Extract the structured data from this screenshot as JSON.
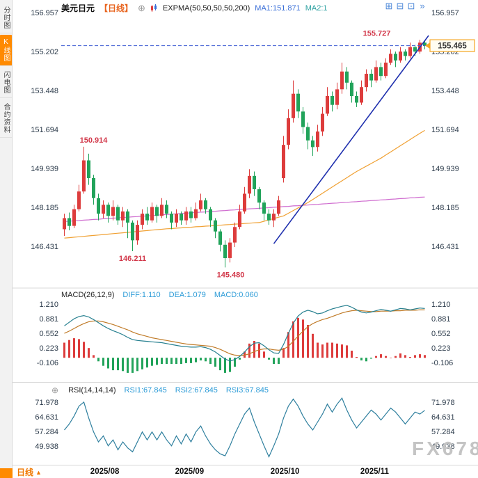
{
  "sidebar": {
    "items": [
      {
        "label": "分时图",
        "active": false
      },
      {
        "label": "K线图",
        "active": true
      },
      {
        "label": "闪电图",
        "active": false
      },
      {
        "label": "合约资料",
        "active": false
      }
    ]
  },
  "header": {
    "title": "美元日元",
    "period": "【日线】",
    "expand": "⊕",
    "indicator": "EXPMA(50,50,50,50,200)",
    "ma1": "MA1:151.871",
    "ma2": "MA2:1"
  },
  "toolbar": {
    "icons": [
      "⊞",
      "⊟",
      "⊡",
      "»"
    ]
  },
  "macd_header": {
    "name": "MACD(26,12,9)",
    "diff": "DIFF:1.110",
    "dea": "DEA:1.079",
    "macd": "MACD:0.060"
  },
  "rsi_header": {
    "icon": "⊕",
    "name": "RSI(14,14,14)",
    "rsi1": "RSI1:67.845",
    "rsi2": "RSI2:67.845",
    "rsi3": "RSI3:67.845"
  },
  "bottom_bar": {
    "period": "日线",
    "arrow": "▲"
  },
  "watermark": "FX678",
  "colors": {
    "up": "#dd3c3c",
    "down": "#21a35a",
    "trend": "#1e2fae",
    "ma_orange": "#f0a032",
    "ma_magenta": "#cf6ccf",
    "diff": "#257f8f",
    "dea": "#c07b28",
    "rsi": "#2e7f9e",
    "annotation": "#d2384a",
    "price_line": "#3c5bd2",
    "tag_border": "#f5a623",
    "axis_text": "#2b3a4a"
  },
  "chart_data": {
    "type": "candlestick",
    "title": "美元日元【日线】",
    "xticks": [
      {
        "label": "2025/08",
        "index": 8.3
      },
      {
        "label": "2025/09",
        "index": 25.7
      },
      {
        "label": "2025/10",
        "index": 45.3
      },
      {
        "label": "2025/11",
        "index": 63.7
      }
    ],
    "panels": {
      "main": {
        "ylim": [
          145.0,
          156.957
        ],
        "yticks": [
          "156.957",
          "155.202",
          "153.448",
          "151.694",
          "149.939",
          "148.185",
          "146.431"
        ],
        "current_price": 155.465,
        "current_price_label": "155.465",
        "annotations": [
          {
            "label": "150.914",
            "index": 4,
            "price": 150.914,
            "pos": "above",
            "dx": 14
          },
          {
            "label": "146.211",
            "index": 14,
            "price": 146.211,
            "pos": "below",
            "dx": 0
          },
          {
            "label": "145.480",
            "index": 33,
            "price": 145.48,
            "pos": "below",
            "dx": 8
          },
          {
            "label": "155.727",
            "index": 73,
            "price": 155.727,
            "pos": "above",
            "dx": -62
          }
        ],
        "trendline": {
          "i1": 43,
          "p1": 146.55,
          "i2": 75.3,
          "p2": 155.92
        },
        "ohlc": [
          [
            147.2,
            147.9,
            146.9,
            147.7
          ],
          [
            147.7,
            147.95,
            147.15,
            147.35
          ],
          [
            147.35,
            148.3,
            147.25,
            148.1
          ],
          [
            148.1,
            149.2,
            148.0,
            148.9
          ],
          [
            148.9,
            150.914,
            148.8,
            150.3
          ],
          [
            150.3,
            150.6,
            149.2,
            149.5
          ],
          [
            149.5,
            149.65,
            148.3,
            148.6
          ],
          [
            148.6,
            148.8,
            147.6,
            147.9
          ],
          [
            147.9,
            148.5,
            147.7,
            148.3
          ],
          [
            148.3,
            148.4,
            147.5,
            147.8
          ],
          [
            147.8,
            148.5,
            147.6,
            148.2
          ],
          [
            148.2,
            148.3,
            147.4,
            147.6
          ],
          [
            147.6,
            148.2,
            147.3,
            148.0
          ],
          [
            148.0,
            148.1,
            146.8,
            147.5
          ],
          [
            147.5,
            147.6,
            146.211,
            146.7
          ],
          [
            146.7,
            147.6,
            146.5,
            147.4
          ],
          [
            147.4,
            148.1,
            147.2,
            147.9
          ],
          [
            147.9,
            148.2,
            147.4,
            147.6
          ],
          [
            147.6,
            148.4,
            147.5,
            148.2
          ],
          [
            148.2,
            148.3,
            147.5,
            147.8
          ],
          [
            147.8,
            148.6,
            147.7,
            148.3
          ],
          [
            148.3,
            148.5,
            147.7,
            147.9
          ],
          [
            147.9,
            148.0,
            147.2,
            147.5
          ],
          [
            147.5,
            148.1,
            147.3,
            147.9
          ],
          [
            147.9,
            148.0,
            147.4,
            147.6
          ],
          [
            147.6,
            148.2,
            147.4,
            148.0
          ],
          [
            148.0,
            148.2,
            147.5,
            147.7
          ],
          [
            147.7,
            148.4,
            147.6,
            148.1
          ],
          [
            148.1,
            148.8,
            148.0,
            148.5
          ],
          [
            148.5,
            148.6,
            147.9,
            148.1
          ],
          [
            148.1,
            148.2,
            147.3,
            147.6
          ],
          [
            147.6,
            147.7,
            146.8,
            147.1
          ],
          [
            147.1,
            147.2,
            146.2,
            146.5
          ],
          [
            146.5,
            146.7,
            145.48,
            145.9
          ],
          [
            145.9,
            146.8,
            145.7,
            146.6
          ],
          [
            146.6,
            147.5,
            146.4,
            147.3
          ],
          [
            147.3,
            148.3,
            147.2,
            148.0
          ],
          [
            148.0,
            149.1,
            147.9,
            148.8
          ],
          [
            148.8,
            149.9,
            148.6,
            149.6
          ],
          [
            149.6,
            149.8,
            148.7,
            149.0
          ],
          [
            149.0,
            149.1,
            148.1,
            148.4
          ],
          [
            148.4,
            148.5,
            147.6,
            147.9
          ],
          [
            147.9,
            148.1,
            147.4,
            147.6
          ],
          [
            147.6,
            148.1,
            147.3,
            147.9
          ],
          [
            147.9,
            148.7,
            147.8,
            148.5
          ],
          [
            149.5,
            151.4,
            149.3,
            151.0
          ],
          [
            151.0,
            152.6,
            150.8,
            152.2
          ],
          [
            152.2,
            153.9,
            152.0,
            153.3
          ],
          [
            153.3,
            153.5,
            152.2,
            152.5
          ],
          [
            152.5,
            152.7,
            151.5,
            151.8
          ],
          [
            151.8,
            152.0,
            150.8,
            151.2
          ],
          [
            151.2,
            151.4,
            150.5,
            150.9
          ],
          [
            150.9,
            151.9,
            150.7,
            151.6
          ],
          [
            151.6,
            152.7,
            151.4,
            152.4
          ],
          [
            152.4,
            153.6,
            152.3,
            153.2
          ],
          [
            153.2,
            153.4,
            152.5,
            152.8
          ],
          [
            152.8,
            153.8,
            152.6,
            153.5
          ],
          [
            153.5,
            154.7,
            153.3,
            154.3
          ],
          [
            154.3,
            154.5,
            153.5,
            153.8
          ],
          [
            153.8,
            153.9,
            152.9,
            153.2
          ],
          [
            153.2,
            153.4,
            152.7,
            152.9
          ],
          [
            152.9,
            153.9,
            152.8,
            153.6
          ],
          [
            153.6,
            154.4,
            153.4,
            154.2
          ],
          [
            154.2,
            154.4,
            153.6,
            153.9
          ],
          [
            153.9,
            154.8,
            153.8,
            154.5
          ],
          [
            154.5,
            154.7,
            153.9,
            154.1
          ],
          [
            154.1,
            154.9,
            154.0,
            154.7
          ],
          [
            154.7,
            155.3,
            154.6,
            155.1
          ],
          [
            155.1,
            155.2,
            154.5,
            154.8
          ],
          [
            154.8,
            155.4,
            154.7,
            155.2
          ],
          [
            155.2,
            155.3,
            154.8,
            155.0
          ],
          [
            155.0,
            155.6,
            154.9,
            155.4
          ],
          [
            155.4,
            155.5,
            155.0,
            155.2
          ],
          [
            155.2,
            155.727,
            155.1,
            155.6
          ],
          [
            155.6,
            155.7,
            155.3,
            155.465
          ]
        ],
        "ma_orange": [
          146.8,
          146.82,
          146.84,
          146.86,
          146.88,
          146.9,
          146.92,
          146.94,
          146.96,
          146.98,
          147.0,
          147.02,
          147.04,
          147.06,
          147.08,
          147.1,
          147.12,
          147.14,
          147.16,
          147.18,
          147.2,
          147.22,
          147.23,
          147.25,
          147.26,
          147.28,
          147.29,
          147.31,
          147.32,
          147.34,
          147.35,
          147.37,
          147.38,
          147.4,
          147.41,
          147.43,
          147.44,
          147.46,
          147.47,
          147.49,
          147.5,
          147.56,
          147.62,
          147.68,
          147.74,
          147.8,
          147.92,
          148.04,
          148.16,
          148.28,
          148.4,
          148.54,
          148.68,
          148.82,
          148.96,
          149.1,
          149.24,
          149.38,
          149.52,
          149.66,
          149.8,
          149.92,
          150.04,
          150.16,
          150.28,
          150.4,
          150.54,
          150.68,
          150.82,
          150.96,
          151.1,
          151.24,
          151.38,
          151.52,
          151.65
        ],
        "ma_magenta": [
          147.55,
          147.56,
          147.58,
          147.59,
          147.61,
          147.62,
          147.64,
          147.65,
          147.67,
          147.68,
          147.7,
          147.71,
          147.73,
          147.74,
          147.76,
          147.77,
          147.79,
          147.8,
          147.82,
          147.83,
          147.85,
          147.86,
          147.88,
          147.89,
          147.91,
          147.92,
          147.94,
          147.95,
          147.97,
          147.98,
          148.0,
          148.01,
          148.03,
          148.04,
          148.06,
          148.07,
          148.09,
          148.1,
          148.12,
          148.13,
          148.14,
          148.16,
          148.17,
          148.19,
          148.2,
          148.22,
          148.23,
          148.25,
          148.26,
          148.28,
          148.29,
          148.31,
          148.32,
          148.34,
          148.35,
          148.37,
          148.38,
          148.4,
          148.41,
          148.43,
          148.44,
          148.46,
          148.47,
          148.49,
          148.5,
          148.52,
          148.53,
          148.55,
          148.56,
          148.58,
          148.59,
          148.61,
          148.62,
          148.64,
          148.65
        ]
      },
      "macd": {
        "yticks": [
          "1.210",
          "0.881",
          "0.552",
          "0.223",
          "-0.106"
        ],
        "diff": [
          0.72,
          0.8,
          0.88,
          0.93,
          0.95,
          0.92,
          0.86,
          0.79,
          0.72,
          0.66,
          0.61,
          0.57,
          0.52,
          0.46,
          0.41,
          0.39,
          0.38,
          0.37,
          0.36,
          0.35,
          0.34,
          0.32,
          0.3,
          0.28,
          0.26,
          0.25,
          0.24,
          0.24,
          0.25,
          0.23,
          0.19,
          0.13,
          0.05,
          -0.03,
          -0.07,
          -0.04,
          0.03,
          0.13,
          0.25,
          0.33,
          0.34,
          0.27,
          0.18,
          0.11,
          0.1,
          0.3,
          0.55,
          0.78,
          0.94,
          1.03,
          1.07,
          1.04,
          0.99,
          1.01,
          1.06,
          1.1,
          1.13,
          1.16,
          1.18,
          1.14,
          1.08,
          1.03,
          1.01,
          1.03,
          1.06,
          1.09,
          1.07,
          1.05,
          1.08,
          1.11,
          1.1,
          1.08,
          1.1,
          1.12,
          1.11
        ],
        "dea": [
          0.55,
          0.6,
          0.66,
          0.72,
          0.77,
          0.81,
          0.83,
          0.83,
          0.81,
          0.78,
          0.75,
          0.71,
          0.67,
          0.63,
          0.58,
          0.54,
          0.51,
          0.48,
          0.45,
          0.43,
          0.41,
          0.39,
          0.37,
          0.35,
          0.33,
          0.31,
          0.3,
          0.29,
          0.28,
          0.27,
          0.26,
          0.23,
          0.19,
          0.14,
          0.09,
          0.06,
          0.05,
          0.06,
          0.09,
          0.14,
          0.18,
          0.2,
          0.2,
          0.18,
          0.17,
          0.19,
          0.26,
          0.37,
          0.49,
          0.6,
          0.7,
          0.77,
          0.82,
          0.86,
          0.89,
          0.93,
          0.97,
          1.01,
          1.04,
          1.06,
          1.07,
          1.06,
          1.05,
          1.04,
          1.04,
          1.05,
          1.05,
          1.05,
          1.06,
          1.06,
          1.07,
          1.07,
          1.07,
          1.08,
          1.079
        ]
      },
      "rsi": {
        "yticks": [
          "71.978",
          "64.631",
          "57.284",
          "49.938"
        ],
        "values": [
          58,
          61,
          65,
          70,
          72,
          64,
          57,
          52,
          55,
          50,
          53,
          48,
          52,
          49,
          47,
          52,
          57,
          53,
          57,
          53,
          57,
          53,
          50,
          55,
          51,
          56,
          52,
          57,
          60,
          55,
          51,
          48,
          46,
          45,
          50,
          56,
          61,
          66,
          69,
          62,
          56,
          50,
          44.5,
          50,
          56,
          64,
          70,
          73.5,
          70,
          65,
          61,
          58,
          62,
          66,
          71,
          67,
          71,
          74,
          68,
          63,
          59,
          62,
          65,
          68,
          66,
          63,
          66,
          69,
          67,
          64,
          61,
          64,
          67,
          66,
          67.845
        ]
      }
    }
  }
}
